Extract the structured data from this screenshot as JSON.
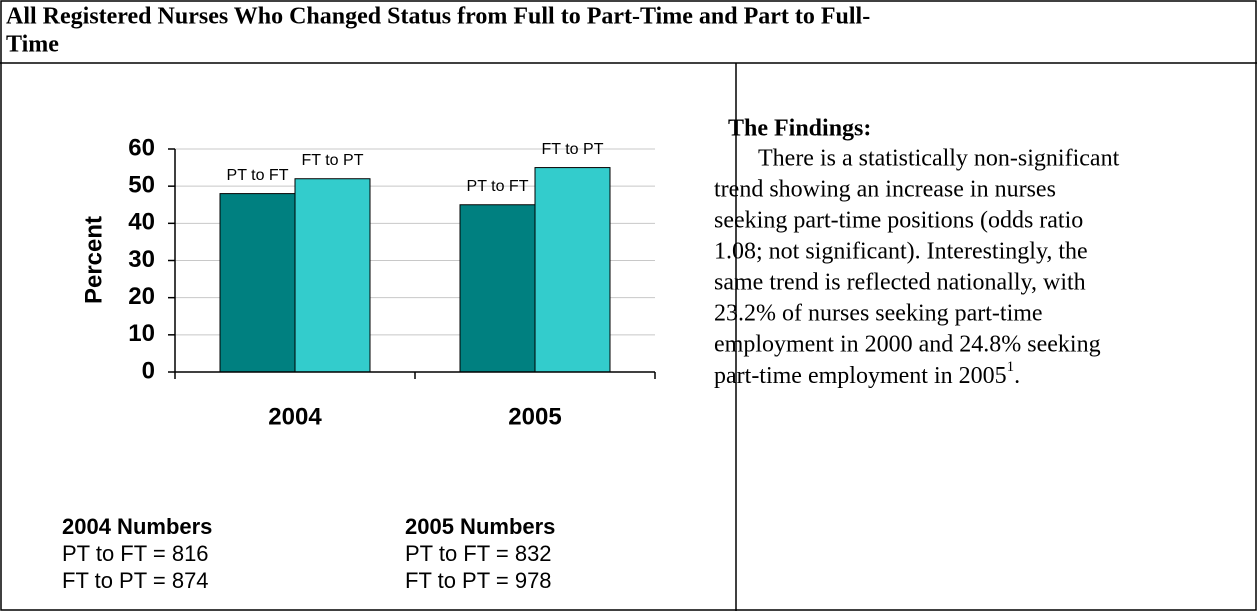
{
  "header": {
    "title_lines": [
      "All Registered Nurses Who Changed Status from Full to Part-Time and Part to Full-",
      "Time"
    ]
  },
  "chart_data": {
    "type": "bar",
    "y_label": "Percent",
    "categories": [
      "2004",
      "2005"
    ],
    "series": [
      {
        "name": "PT to FT",
        "color": "#008080",
        "values": [
          48,
          45
        ]
      },
      {
        "name": "FT to PT",
        "color": "#33cccc",
        "values": [
          52,
          55
        ]
      }
    ],
    "ylim": [
      0,
      60
    ],
    "yticks": [
      0,
      10,
      20,
      30,
      40,
      50,
      60
    ],
    "grid": true
  },
  "numbers": [
    {
      "heading": "2004 Numbers",
      "lines": [
        "PT to FT = 816",
        "FT to PT = 874"
      ]
    },
    {
      "heading": "2005 Numbers",
      "lines": [
        "PT to FT = 832",
        "FT to PT = 978"
      ]
    }
  ],
  "findings": {
    "heading": "The Findings:",
    "lines": [
      "There is a statistically non-significant",
      "trend showing an increase in nurses",
      "seeking part-time positions (odds ratio",
      "1.08; not significant).  Interestingly, the",
      "same trend is reflected nationally, with",
      "23.2% of nurses seeking part-time",
      "employment in 2000 and 24.8% seeking"
    ],
    "last_line": "part-time employment in 2005",
    "footnote": "1",
    "end": "."
  }
}
